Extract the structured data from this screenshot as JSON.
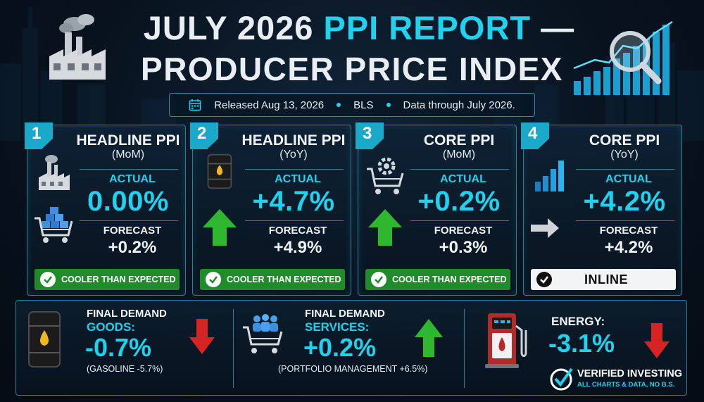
{
  "header": {
    "title_part1": "JULY 2026 ",
    "title_part2": "PPI REPORT",
    "title_part3": " —",
    "subtitle": "PRODUCER PRICE INDEX"
  },
  "release_bar": {
    "released": "Released Aug 13, 2026",
    "source": "BLS",
    "coverage": "Data through July 2026."
  },
  "cards": [
    {
      "number": "1",
      "title": "HEADLINE PPI",
      "period": "(MoM)",
      "actual_label": "ACTUAL",
      "actual": "0.00%",
      "forecast_label": "FORECAST",
      "forecast": "+0.2%",
      "status": "COOLER THAN EXPECTED"
    },
    {
      "number": "2",
      "title": "HEADLINE PPI",
      "period": "(YoY)",
      "actual_label": "ACTUAL",
      "actual": "+4.7%",
      "forecast_label": "FORECAST",
      "forecast": "+4.9%",
      "status": "COOLER THAN EXPECTED"
    },
    {
      "number": "3",
      "title": "CORE PPI",
      "period": "(MoM)",
      "actual_label": "ACTUAL",
      "actual": "+0.2%",
      "forecast_label": "FORECAST",
      "forecast": "+0.3%",
      "status": "COOLER THAN EXPECTED"
    },
    {
      "number": "4",
      "title": "CORE PPI",
      "period": "(YoY)",
      "actual_label": "ACTUAL",
      "actual": "+4.2%",
      "forecast_label": "FORECAST",
      "forecast": "+4.2%",
      "status": "INLINE"
    }
  ],
  "bottom": {
    "goods": {
      "label1": "FINAL DEMAND",
      "label2": "GOODS:",
      "value": "-0.7%",
      "note": "(GASOLINE -5.7%)"
    },
    "services": {
      "label1": "FINAL DEMAND",
      "label2": "SERVICES:",
      "value": "+0.2%",
      "note": "(PORTFOLIO MANAGEMENT +6.5%)"
    },
    "energy": {
      "label1": "ENERGY:",
      "value": "-3.1%"
    }
  },
  "brand": {
    "name": "VERIFIED INVESTING",
    "tagline": "ALL CHARTS & DATA, NO B.S."
  },
  "colors": {
    "accent": "#21d2ee",
    "up": "#2fb82f",
    "down": "#d62424",
    "pill_green": "#1f8b2b"
  }
}
